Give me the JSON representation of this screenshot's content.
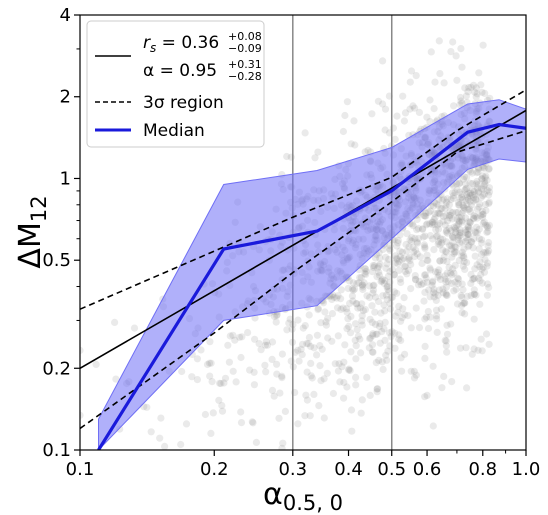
{
  "chart_data": {
    "type": "scatter",
    "xscale": "log",
    "yscale": "log",
    "xlim": [
      0.1,
      1.0
    ],
    "ylim": [
      0.1,
      4
    ],
    "xticks": [
      0.1,
      0.2,
      0.3,
      0.4,
      0.5,
      0.6,
      0.8,
      1.0
    ],
    "xtick_labels": [
      "0.1",
      "0.2",
      "0.3",
      "0.4",
      "0.5",
      "0.6",
      "0.8",
      "1.0"
    ],
    "yticks": [
      0.1,
      0.2,
      0.5,
      1,
      2,
      4
    ],
    "ytick_labels": [
      "0.1",
      "0.2",
      "0.5",
      "1",
      "2",
      "4"
    ],
    "xlabel": "α",
    "xlabel_sub": "0.5, 0",
    "ylabel": "ΔM",
    "ylabel_sub": "12",
    "vertical_lines": [
      0.3,
      0.5
    ],
    "grid": false,
    "colors": {
      "scatter": "#808080",
      "median": "#1a1adb",
      "band": "#6f6ff5",
      "fit": "#000000",
      "vline": "#888888"
    },
    "fit": {
      "name": "r_s = 0.36, α = 0.95",
      "x": [
        0.1,
        1.0
      ],
      "y": [
        0.2,
        1.78
      ]
    },
    "sigma_upper": {
      "name": "3σ region",
      "x": [
        0.1,
        0.2,
        0.3,
        0.5,
        0.7,
        1.0
      ],
      "y": [
        0.33,
        0.54,
        0.72,
        1.01,
        1.5,
        2.12
      ]
    },
    "sigma_lower": {
      "x": [
        0.1,
        0.2,
        0.3,
        0.5,
        0.7,
        1.0
      ],
      "y": [
        0.12,
        0.27,
        0.45,
        0.82,
        1.25,
        1.5
      ]
    },
    "median": {
      "name": "Median",
      "x": [
        0.11,
        0.21,
        0.34,
        0.5,
        0.74,
        0.87,
        1.0
      ],
      "y": [
        0.1,
        0.55,
        0.64,
        0.9,
        1.48,
        1.58,
        1.53
      ]
    },
    "band_upper": {
      "x": [
        0.11,
        0.21,
        0.34,
        0.5,
        0.74,
        0.87,
        1.0
      ],
      "y": [
        0.13,
        0.95,
        1.07,
        1.3,
        1.88,
        1.95,
        1.8
      ]
    },
    "band_lower": {
      "x": [
        0.11,
        0.21,
        0.34,
        0.5,
        0.74,
        0.87,
        1.0
      ],
      "y": [
        0.1,
        0.3,
        0.34,
        0.6,
        1.08,
        1.18,
        1.15
      ]
    },
    "legend": {
      "placement": "top-left",
      "entries": [
        {
          "label_main": "r",
          "label_sub": "s",
          "label_rest": " = 0.36",
          "sup": "+0.08",
          "sub": "−0.09",
          "style": "solid-black"
        },
        {
          "label_main": "α = 0.95",
          "sup": "+0.31",
          "sub": "−0.28",
          "style": "none"
        },
        {
          "label_main": "3σ region",
          "style": "dashed-black"
        },
        {
          "label_main": "Median",
          "style": "solid-blue"
        }
      ]
    }
  }
}
